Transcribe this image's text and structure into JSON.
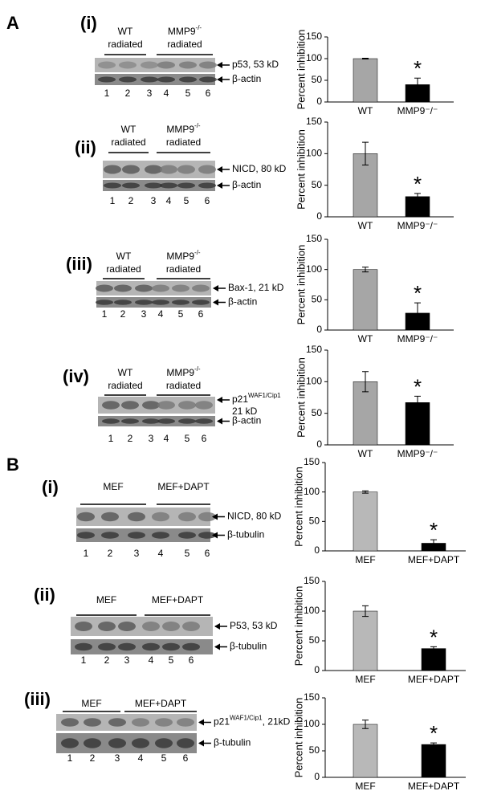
{
  "panel_labels": [
    "A",
    "B"
  ],
  "blots": [
    {
      "label": "(i)",
      "groups": [
        {
          "line1": "WT",
          "line2": "radiated"
        },
        {
          "line1": "MMP9",
          "sup": "-/-",
          "line2": "radiated"
        }
      ],
      "bands": [
        {
          "main": "p53, 53 kD"
        },
        {
          "main": "β-actin"
        }
      ],
      "lanes": [
        1,
        2,
        3,
        4,
        5,
        6
      ]
    },
    {
      "label": "(ii)",
      "groups": [
        {
          "line1": "WT",
          "line2": "radiated"
        },
        {
          "line1": "MMP9",
          "sup": "-/-",
          "line2": "radiated"
        }
      ],
      "bands": [
        {
          "main": "NICD, 80 kD"
        },
        {
          "main": "β-actin"
        }
      ],
      "lanes": [
        1,
        2,
        3,
        4,
        5,
        6
      ]
    },
    {
      "label": "(iii)",
      "groups": [
        {
          "line1": "WT",
          "line2": "radiated"
        },
        {
          "line1": "MMP9",
          "sup": "-/-",
          "line2": "radiated"
        }
      ],
      "bands": [
        {
          "main": "Bax-1, 21 kD"
        },
        {
          "main": "β-actin"
        }
      ],
      "lanes": [
        1,
        2,
        3,
        4,
        5,
        6
      ]
    },
    {
      "label": "(iv)",
      "groups": [
        {
          "line1": "WT",
          "line2": "radiated"
        },
        {
          "line1": "MMP9",
          "sup": "-/-",
          "line2": "radiated"
        }
      ],
      "bands": [
        {
          "main": "p21",
          "sup": "WAF1/Cip1",
          "line2": "21 kD"
        },
        {
          "main": "β-actin"
        }
      ],
      "lanes": [
        1,
        2,
        3,
        4,
        5,
        6
      ]
    },
    {
      "label": "(i)",
      "groups": [
        {
          "line1": "MEF"
        },
        {
          "line1": "MEF+DAPT"
        }
      ],
      "bands": [
        {
          "main": "NICD, 80 kD"
        },
        {
          "main": "β-tubulin"
        }
      ],
      "lanes": [
        1,
        2,
        3,
        4,
        5,
        6
      ]
    },
    {
      "label": "(ii)",
      "groups": [
        {
          "line1": "MEF"
        },
        {
          "line1": "MEF+DAPT"
        }
      ],
      "bands": [
        {
          "main": "P53, 53 kD"
        },
        {
          "main": "β-tubulin"
        }
      ],
      "lanes": [
        1,
        2,
        3,
        4,
        5,
        6
      ]
    },
    {
      "label": "(iii)",
      "groups": [
        {
          "line1": "MEF"
        },
        {
          "line1": "MEF+DAPT"
        }
      ],
      "bands": [
        {
          "main": "p21",
          "sup": "WAF1/Cip1",
          "after": ", 21kD"
        },
        {
          "main": "β-tubulin"
        }
      ],
      "lanes": [
        1,
        2,
        3,
        4,
        5,
        6
      ]
    }
  ],
  "chart_data": [
    {
      "type": "bar",
      "y_label": "Percent inhibition",
      "categories": [
        "WT",
        "MMP9⁻/⁻"
      ],
      "values": [
        100,
        40
      ],
      "errors": [
        1,
        15
      ],
      "colors": [
        "#a6a6a6",
        "#000000"
      ],
      "ylim": [
        0,
        150
      ],
      "yticks": [
        0,
        50,
        100,
        150
      ],
      "annotation": "*"
    },
    {
      "type": "bar",
      "y_label": "Percent inhibition",
      "categories": [
        "WT",
        "MMP9⁻/⁻"
      ],
      "values": [
        100,
        32
      ],
      "errors": [
        18,
        5
      ],
      "colors": [
        "#a6a6a6",
        "#000000"
      ],
      "ylim": [
        0,
        150
      ],
      "yticks": [
        0,
        50,
        100,
        150
      ],
      "annotation": "*"
    },
    {
      "type": "bar",
      "y_label": "Percent inhibition",
      "categories": [
        "WT",
        "MMP9⁻/⁻"
      ],
      "values": [
        100,
        28
      ],
      "errors": [
        4,
        17
      ],
      "colors": [
        "#a6a6a6",
        "#000000"
      ],
      "ylim": [
        0,
        150
      ],
      "yticks": [
        0,
        50,
        100,
        150
      ],
      "annotation": "*"
    },
    {
      "type": "bar",
      "y_label": "Percent inhibition",
      "categories": [
        "WT",
        "MMP9⁻/⁻"
      ],
      "values": [
        100,
        67
      ],
      "errors": [
        16,
        10
      ],
      "colors": [
        "#a6a6a6",
        "#000000"
      ],
      "ylim": [
        0,
        150
      ],
      "yticks": [
        0,
        50,
        100,
        150
      ],
      "annotation": "*"
    },
    {
      "type": "bar",
      "y_label": "Percent inhibition",
      "categories": [
        "MEF",
        "MEF+DAPT"
      ],
      "values": [
        100,
        13
      ],
      "errors": [
        2,
        6
      ],
      "colors": [
        "#b8b8b8",
        "#000000"
      ],
      "ylim": [
        0,
        150
      ],
      "yticks": [
        0,
        50,
        100,
        150
      ],
      "annotation": "*"
    },
    {
      "type": "bar",
      "y_label": "Percent inhibition",
      "categories": [
        "MEF",
        "MEF+DAPT"
      ],
      "values": [
        100,
        37
      ],
      "errors": [
        9,
        3
      ],
      "colors": [
        "#b8b8b8",
        "#000000"
      ],
      "ylim": [
        0,
        150
      ],
      "yticks": [
        0,
        50,
        100,
        150
      ],
      "annotation": "*"
    },
    {
      "type": "bar",
      "y_label": "Percent inhibition",
      "categories": [
        "MEF",
        "MEF+DAPT"
      ],
      "values": [
        100,
        62
      ],
      "errors": [
        8,
        3
      ],
      "colors": [
        "#b8b8b8",
        "#000000"
      ],
      "ylim": [
        0,
        150
      ],
      "yticks": [
        0,
        50,
        100,
        150
      ],
      "annotation": "*"
    }
  ]
}
